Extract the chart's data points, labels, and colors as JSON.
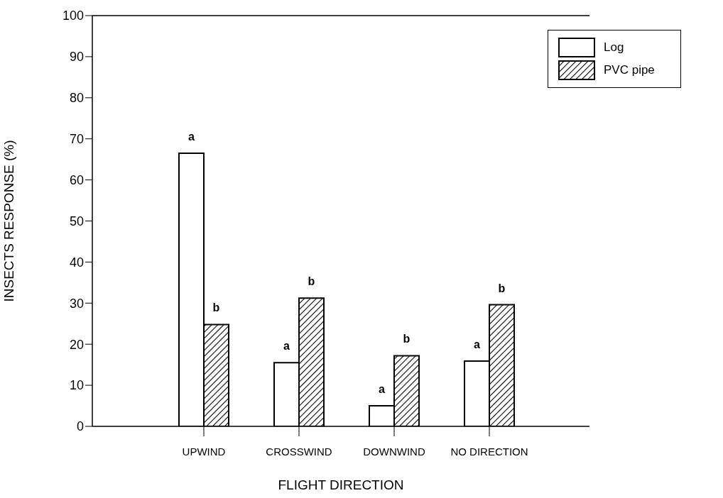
{
  "chart_data": {
    "type": "bar",
    "xlabel": "FLIGHT DIRECTION",
    "ylabel": "INSECTS RESPONSE (%)",
    "categories": [
      "UPWIND",
      "CROSSWIND",
      "DOWNWIND",
      "NO DIRECTION"
    ],
    "series": [
      {
        "name": "Log",
        "color": "#ffffff",
        "values": [
          66.5,
          15.5,
          5,
          15.9
        ]
      },
      {
        "name": "PVC pipe",
        "color": "#000000",
        "values": [
          24.8,
          31.2,
          17.2,
          29.6
        ]
      }
    ],
    "ylim": [
      0,
      100
    ],
    "yticks": [
      0,
      10,
      20,
      30,
      40,
      50,
      60,
      70,
      80,
      90,
      100
    ],
    "grid": false,
    "legend": "top right",
    "annotations": [
      {
        "text": "a",
        "x": "UPWIND",
        "y": 66.5
      },
      {
        "text": "b",
        "x": "UPWIND",
        "y": 24.8
      },
      {
        "text": "a",
        "x": "CROSSWIND",
        "y": 15.5
      },
      {
        "text": "b",
        "x": "CROSSWIND",
        "y": 31.2
      },
      {
        "text": "a",
        "x": "DOWNWIND",
        "y": 5
      },
      {
        "text": "b",
        "x": "DOWNWIND",
        "y": 17.2
      },
      {
        "text": "a",
        "x": "NO DIRECTION",
        "y": 15.9
      },
      {
        "text": "b",
        "x": "NO DIRECTION",
        "y": 29.6
      }
    ]
  }
}
